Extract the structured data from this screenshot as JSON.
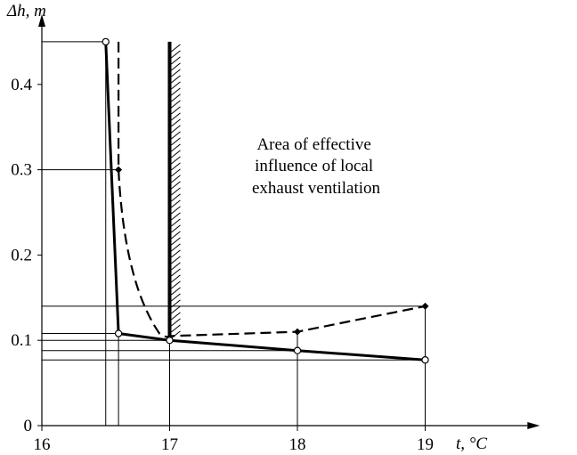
{
  "chart_data": {
    "type": "line",
    "ylabel_main": "Δh",
    "ylabel_unit": ", m",
    "xlabel_main": "t",
    "xlabel_unit": ", °C",
    "xlim": [
      16,
      19.8
    ],
    "ylim": [
      0,
      0.48
    ],
    "x_ticks": [
      16,
      17,
      18,
      19
    ],
    "x_tick_labels": [
      "16",
      "17",
      "18",
      "19"
    ],
    "y_ticks": [
      0,
      0.1,
      0.2,
      0.3,
      0.4
    ],
    "y_tick_labels": [
      "0",
      "0.1",
      "0.2",
      "0.3",
      "0.4"
    ],
    "annotation": [
      "Area of effective",
      "influence of local",
      "exhaust ventilation"
    ],
    "boundary_x": 17.0,
    "boundary_ymax": 0.45,
    "grid": false,
    "series": [
      {
        "style": "solid",
        "marker": "open-circle",
        "points": [
          [
            16.5,
            0.45
          ],
          [
            16.6,
            0.108
          ],
          [
            17.0,
            0.1
          ],
          [
            18.0,
            0.088
          ],
          [
            19.0,
            0.077
          ]
        ]
      },
      {
        "style": "dashed",
        "marker": "filled-diamond",
        "points": [
          [
            16.6,
            0.45
          ],
          [
            16.6,
            0.3
          ],
          [
            16.8,
            0.15
          ],
          [
            17.0,
            0.105
          ],
          [
            18.0,
            0.11
          ],
          [
            19.0,
            0.14
          ]
        ]
      }
    ],
    "guide_levels": [
      0.45,
      0.3,
      0.14,
      0.108,
      0.1,
      0.088,
      0.077
    ]
  }
}
